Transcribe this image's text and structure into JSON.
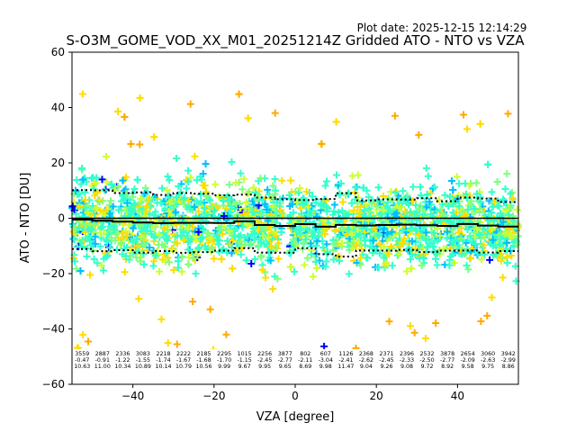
{
  "plot_date": "Plot date: 2025-12-15 12:14:29",
  "chart_data": {
    "type": "scatter",
    "title": "S-O3M_GOME_VOD_XX_M01_20251214Z Gridded ATO - NTO vs VZA",
    "xlabel": "VZA [degree]",
    "ylabel": "ATO - NTO [DU]",
    "xlim": [
      -55,
      55
    ],
    "ylim": [
      -60,
      60
    ],
    "xticks": [
      -40,
      -20,
      0,
      20,
      40
    ],
    "yticks": [
      -60,
      -40,
      -20,
      0,
      20,
      40,
      60
    ],
    "xtick_labels": [
      "−40",
      "−20",
      "0",
      "20",
      "40"
    ],
    "ytick_labels": [
      "−60",
      "−40",
      "−20",
      "0",
      "20",
      "40",
      "60"
    ],
    "marker": "+",
    "colors": [
      "#0000ff",
      "#00bfff",
      "#33ffcc",
      "#7fff7f",
      "#ccff33",
      "#ffdd00",
      "#ffaa00"
    ],
    "bin_centers": [
      -52.5,
      -47.5,
      -42.5,
      -37.5,
      -32.5,
      -27.5,
      -22.5,
      -17.5,
      -12.5,
      -7.5,
      -2.5,
      2.5,
      7.5,
      12.5,
      17.5,
      22.5,
      27.5,
      32.5,
      37.5,
      42.5,
      47.5,
      52.5
    ],
    "counts": [
      "3559",
      "2887",
      "2336",
      "3083",
      "2218",
      "2222",
      "2185",
      "2295",
      "1015",
      "2256",
      "3877",
      "802",
      "607",
      "1126",
      "2368",
      "2371",
      "2396",
      "2532",
      "3878",
      "2654",
      "3060",
      "3942"
    ],
    "means": [
      "-0.47",
      "-0.91",
      "-1.22",
      "-1.55",
      "-1.74",
      "-1.67",
      "-1.68",
      "-1.70",
      "-1.15",
      "-2.45",
      "-2.77",
      "-2.11",
      "-3.04",
      "-2.41",
      "-2.62",
      "-2.45",
      "-2.33",
      "-2.50",
      "-2.77",
      "-2.09",
      "-2.63",
      "-2.99"
    ],
    "stds": [
      "10.63",
      "11.00",
      "10.34",
      "10.89",
      "10.14",
      "10.79",
      "10.56",
      "9.99",
      "9.67",
      "9.95",
      "9.65",
      "8.69",
      "9.98",
      "11.47",
      "9.04",
      "9.26",
      "9.08",
      "9.72",
      "8.92",
      "9.58",
      "9.75",
      "8.86"
    ]
  }
}
